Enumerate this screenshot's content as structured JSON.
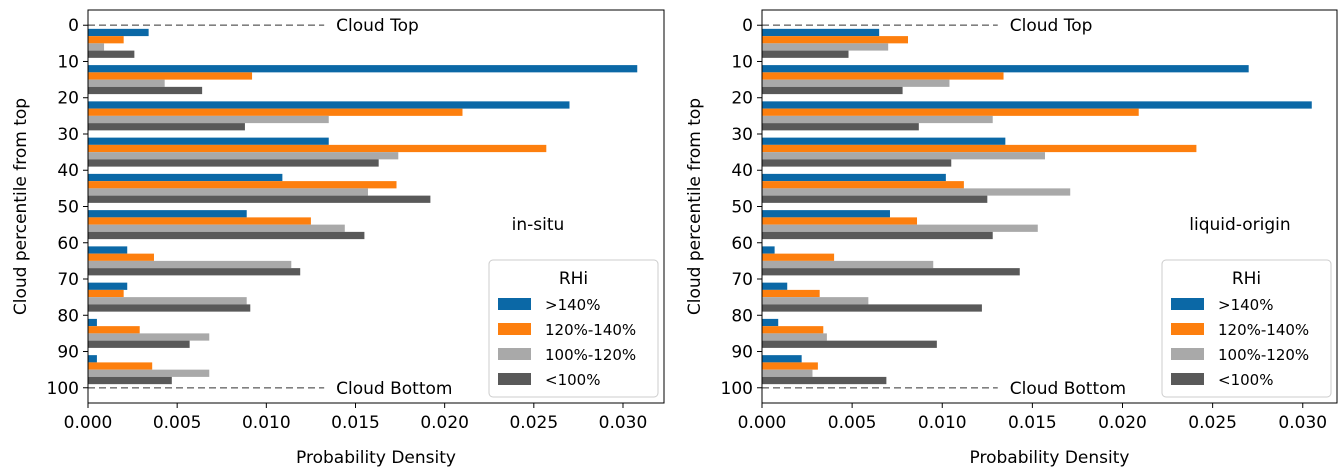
{
  "colors": {
    "gt140": "#0b68a6",
    "r120_140": "#fd7f0e",
    "r100_120": "#a9a9a9",
    "lt100": "#595959"
  },
  "chart_data": [
    {
      "type": "bar",
      "orientation": "horizontal",
      "annotation": "in-situ",
      "xlabel": "Probability Density",
      "ylabel": "Cloud percentile from top",
      "xlim": [
        0,
        0.0323
      ],
      "xticks": [
        "0.000",
        "0.005",
        "0.010",
        "0.015",
        "0.020",
        "0.025",
        "0.030"
      ],
      "ylim": [
        0,
        100
      ],
      "yticks": [
        "0",
        "10",
        "20",
        "30",
        "40",
        "50",
        "60",
        "70",
        "80",
        "90",
        "100"
      ],
      "grid": false,
      "reference_lines": [
        {
          "y": 0,
          "label": "Cloud Top"
        },
        {
          "y": 100,
          "label": "Cloud Bottom"
        }
      ],
      "legend": {
        "title": "RHi",
        "placement": "lower right"
      },
      "categories": [
        "0-10",
        "10-20",
        "20-30",
        "30-40",
        "40-50",
        "50-60",
        "60-70",
        "70-80",
        "80-90",
        "90-100"
      ],
      "series": [
        {
          "name": ">140%",
          "values": [
            0.0034,
            0.0308,
            0.027,
            0.0135,
            0.0109,
            0.0089,
            0.0022,
            0.0022,
            0.0005,
            0.0005
          ]
        },
        {
          "name": "120%-140%",
          "values": [
            0.002,
            0.0092,
            0.021,
            0.0257,
            0.0173,
            0.0125,
            0.0037,
            0.002,
            0.0029,
            0.0036
          ]
        },
        {
          "name": "100%-120%",
          "values": [
            0.0009,
            0.0043,
            0.0135,
            0.0174,
            0.0157,
            0.0144,
            0.0114,
            0.0089,
            0.0068,
            0.0068
          ]
        },
        {
          "name": "<100%",
          "values": [
            0.0026,
            0.0064,
            0.0088,
            0.0163,
            0.0192,
            0.0155,
            0.0119,
            0.0091,
            0.0057,
            0.0047
          ]
        }
      ]
    },
    {
      "type": "bar",
      "orientation": "horizontal",
      "annotation": "liquid-origin",
      "xlabel": "Probability Density",
      "ylabel": "Cloud percentile from top",
      "xlim": [
        0,
        0.0319
      ],
      "xticks": [
        "0.000",
        "0.005",
        "0.010",
        "0.015",
        "0.020",
        "0.025",
        "0.030"
      ],
      "ylim": [
        0,
        100
      ],
      "yticks": [
        "0",
        "10",
        "20",
        "30",
        "40",
        "50",
        "60",
        "70",
        "80",
        "90",
        "100"
      ],
      "grid": false,
      "reference_lines": [
        {
          "y": 0,
          "label": "Cloud Top"
        },
        {
          "y": 100,
          "label": "Cloud Bottom"
        }
      ],
      "legend": {
        "title": "RHi",
        "placement": "lower right"
      },
      "categories": [
        "0-10",
        "10-20",
        "20-30",
        "30-40",
        "40-50",
        "50-60",
        "60-70",
        "70-80",
        "80-90",
        "90-100"
      ],
      "series": [
        {
          "name": ">140%",
          "values": [
            0.0065,
            0.027,
            0.0305,
            0.0135,
            0.0102,
            0.0071,
            0.0007,
            0.0014,
            0.0009,
            0.0022
          ]
        },
        {
          "name": "120%-140%",
          "values": [
            0.0081,
            0.0134,
            0.0209,
            0.0241,
            0.0112,
            0.0086,
            0.004,
            0.0032,
            0.0034,
            0.0031
          ]
        },
        {
          "name": "100%-120%",
          "values": [
            0.007,
            0.0104,
            0.0128,
            0.0157,
            0.0171,
            0.0153,
            0.0095,
            0.0059,
            0.0036,
            0.0028
          ]
        },
        {
          "name": "<100%",
          "values": [
            0.0048,
            0.0078,
            0.0087,
            0.0105,
            0.0125,
            0.0128,
            0.0143,
            0.0122,
            0.0097,
            0.0069
          ]
        }
      ]
    }
  ]
}
